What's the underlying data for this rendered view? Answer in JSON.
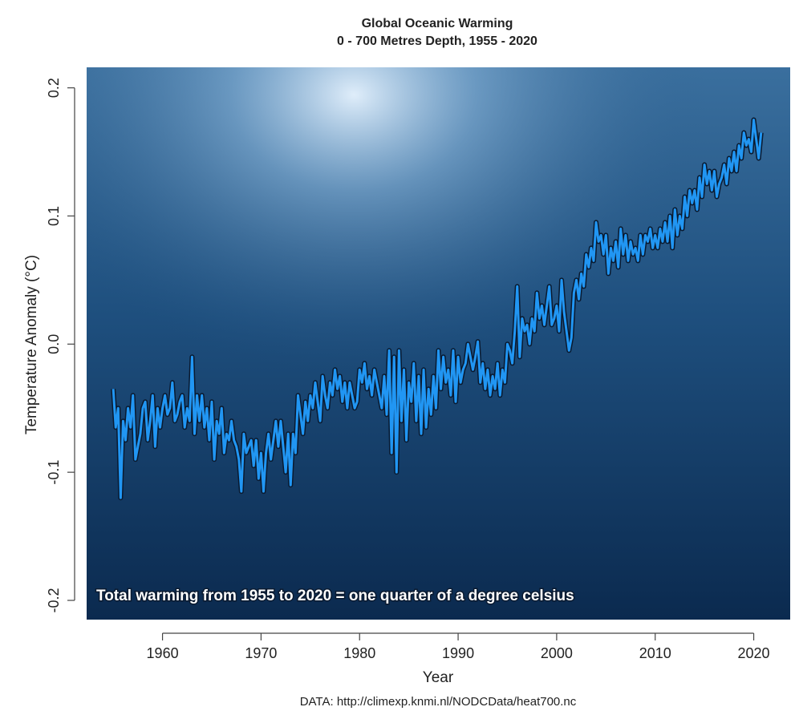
{
  "chart_data": {
    "type": "line",
    "title": "Global Oceanic Warming",
    "subtitle": "0 - 700 Metres Depth, 1955 - 2020",
    "x_label": "Year",
    "y_label": "Temperature Anomaly (°C)",
    "annotation": "Total warming from 1955 to 2020 = one quarter of a degree celsius",
    "source": "DATA: http://climexp.knmi.nl/NODCData/heat700.nc",
    "xlim": [
      1952.3,
      2023.7
    ],
    "ylim": [
      -0.215,
      0.216
    ],
    "xticks": [
      1960,
      1970,
      1980,
      1990,
      2000,
      2010,
      2020
    ],
    "yticks": [
      0.2,
      0.1,
      {
        "value": 0,
        "label": "0.0"
      },
      -0.1,
      -0.2
    ],
    "x": [
      1955,
      1955.25,
      1955.5,
      1955.75,
      1956,
      1956.25,
      1956.5,
      1956.75,
      1957,
      1957.25,
      1957.5,
      1957.75,
      1958,
      1958.25,
      1958.5,
      1958.75,
      1959,
      1959.25,
      1959.5,
      1959.75,
      1960,
      1960.25,
      1960.5,
      1960.75,
      1961,
      1961.25,
      1961.5,
      1961.75,
      1962,
      1962.25,
      1962.5,
      1962.75,
      1963,
      1963.25,
      1963.5,
      1963.75,
      1964,
      1964.25,
      1964.5,
      1964.75,
      1965,
      1965.25,
      1965.5,
      1965.75,
      1966,
      1966.25,
      1966.5,
      1966.75,
      1967,
      1967.25,
      1967.5,
      1967.75,
      1968,
      1968.25,
      1968.5,
      1968.75,
      1969,
      1969.25,
      1969.5,
      1969.75,
      1970,
      1970.25,
      1970.5,
      1970.75,
      1971,
      1971.25,
      1971.5,
      1971.75,
      1972,
      1972.25,
      1972.5,
      1972.75,
      1973,
      1973.25,
      1973.5,
      1973.75,
      1974,
      1974.25,
      1974.5,
      1974.75,
      1975,
      1975.25,
      1975.5,
      1975.75,
      1976,
      1976.25,
      1976.5,
      1976.75,
      1977,
      1977.25,
      1977.5,
      1977.75,
      1978,
      1978.25,
      1978.5,
      1978.75,
      1979,
      1979.25,
      1979.5,
      1979.75,
      1980,
      1980.25,
      1980.5,
      1980.75,
      1981,
      1981.25,
      1981.5,
      1981.75,
      1982,
      1982.25,
      1982.5,
      1982.75,
      1983,
      1983.25,
      1983.5,
      1983.75,
      1984,
      1984.25,
      1984.5,
      1984.75,
      1985,
      1985.25,
      1985.5,
      1985.75,
      1986,
      1986.25,
      1986.5,
      1986.75,
      1987,
      1987.25,
      1987.5,
      1987.75,
      1988,
      1988.25,
      1988.5,
      1988.75,
      1989,
      1989.25,
      1989.5,
      1989.75,
      1990,
      1990.25,
      1990.5,
      1990.75,
      1991,
      1991.25,
      1991.5,
      1991.75,
      1992,
      1992.25,
      1992.5,
      1992.75,
      1993,
      1993.25,
      1993.5,
      1993.75,
      1994,
      1994.25,
      1994.5,
      1994.75,
      1995,
      1995.25,
      1995.5,
      1995.75,
      1996,
      1996.25,
      1996.5,
      1996.75,
      1997,
      1997.25,
      1997.5,
      1997.75,
      1998,
      1998.25,
      1998.5,
      1998.75,
      1999,
      1999.25,
      1999.5,
      1999.75,
      2000,
      2000.25,
      2000.5,
      2000.75,
      2001,
      2001.25,
      2001.5,
      2001.75,
      2002,
      2002.25,
      2002.5,
      2002.75,
      2003,
      2003.25,
      2003.5,
      2003.75,
      2004,
      2004.25,
      2004.5,
      2004.75,
      2005,
      2005.25,
      2005.5,
      2005.75,
      2006,
      2006.25,
      2006.5,
      2006.75,
      2007,
      2007.25,
      2007.5,
      2007.75,
      2008,
      2008.25,
      2008.5,
      2008.75,
      2009,
      2009.25,
      2009.5,
      2009.75,
      2010,
      2010.25,
      2010.5,
      2010.75,
      2011,
      2011.25,
      2011.5,
      2011.75,
      2012,
      2012.25,
      2012.5,
      2012.75,
      2013,
      2013.25,
      2013.5,
      2013.75,
      2014,
      2014.25,
      2014.5,
      2014.75,
      2015,
      2015.25,
      2015.5,
      2015.75,
      2016,
      2016.25,
      2016.5,
      2016.75,
      2017,
      2017.25,
      2017.5,
      2017.75,
      2018,
      2018.25,
      2018.5,
      2018.75,
      2019,
      2019.25,
      2019.5,
      2019.75,
      2020,
      2020.25,
      2020.5,
      2020.75
    ],
    "series": [
      {
        "color": "#2196f3",
        "values": [
          -0.035,
          -0.065,
          -0.05,
          -0.12,
          -0.06,
          -0.075,
          -0.05,
          -0.065,
          -0.04,
          -0.09,
          -0.08,
          -0.07,
          -0.05,
          -0.045,
          -0.075,
          -0.06,
          -0.04,
          -0.08,
          -0.05,
          -0.065,
          -0.05,
          -0.04,
          -0.055,
          -0.05,
          -0.03,
          -0.06,
          -0.055,
          -0.045,
          -0.04,
          -0.065,
          -0.05,
          -0.06,
          -0.01,
          -0.07,
          -0.04,
          -0.06,
          -0.04,
          -0.065,
          -0.05,
          -0.075,
          -0.045,
          -0.09,
          -0.06,
          -0.07,
          -0.05,
          -0.085,
          -0.07,
          -0.075,
          -0.06,
          -0.075,
          -0.08,
          -0.09,
          -0.115,
          -0.07,
          -0.085,
          -0.08,
          -0.075,
          -0.095,
          -0.075,
          -0.105,
          -0.085,
          -0.115,
          -0.085,
          -0.07,
          -0.09,
          -0.075,
          -0.06,
          -0.08,
          -0.06,
          -0.08,
          -0.1,
          -0.07,
          -0.11,
          -0.07,
          -0.085,
          -0.04,
          -0.055,
          -0.07,
          -0.045,
          -0.06,
          -0.04,
          -0.05,
          -0.03,
          -0.045,
          -0.06,
          -0.025,
          -0.04,
          -0.05,
          -0.03,
          -0.04,
          -0.02,
          -0.035,
          -0.025,
          -0.045,
          -0.03,
          -0.05,
          -0.03,
          -0.04,
          -0.05,
          -0.045,
          -0.02,
          -0.03,
          -0.015,
          -0.035,
          -0.025,
          -0.04,
          -0.02,
          -0.03,
          -0.04,
          -0.05,
          -0.025,
          -0.055,
          -0.005,
          -0.085,
          -0.01,
          -0.1,
          -0.005,
          -0.06,
          -0.02,
          -0.075,
          -0.03,
          -0.045,
          -0.015,
          -0.06,
          -0.025,
          -0.07,
          -0.02,
          -0.065,
          -0.035,
          -0.055,
          -0.025,
          -0.05,
          -0.005,
          -0.035,
          -0.01,
          -0.03,
          -0.02,
          -0.04,
          -0.005,
          -0.045,
          -0.01,
          -0.03,
          -0.02,
          -0.015,
          0.0,
          -0.01,
          -0.02,
          -0.01,
          0.002,
          -0.03,
          -0.015,
          -0.035,
          -0.02,
          -0.04,
          -0.025,
          -0.035,
          -0.015,
          -0.04,
          -0.02,
          -0.03,
          0.0,
          -0.005,
          -0.015,
          0.01,
          0.045,
          -0.01,
          0.02,
          0.01,
          0.015,
          0.0,
          0.02,
          0.01,
          0.04,
          0.02,
          0.03,
          0.015,
          0.03,
          0.045,
          0.015,
          0.02,
          0.03,
          0.01,
          0.05,
          0.025,
          0.01,
          -0.005,
          0.005,
          0.04,
          0.05,
          0.035,
          0.055,
          0.045,
          0.07,
          0.06,
          0.075,
          0.065,
          0.095,
          0.08,
          0.085,
          0.07,
          0.085,
          0.055,
          0.075,
          0.065,
          0.08,
          0.06,
          0.09,
          0.07,
          0.085,
          0.065,
          0.08,
          0.07,
          0.075,
          0.065,
          0.085,
          0.07,
          0.085,
          0.08,
          0.09,
          0.075,
          0.085,
          0.075,
          0.09,
          0.08,
          0.095,
          0.08,
          0.1,
          0.075,
          0.105,
          0.085,
          0.1,
          0.09,
          0.115,
          0.1,
          0.12,
          0.11,
          0.12,
          0.105,
          0.13,
          0.115,
          0.14,
          0.125,
          0.135,
          0.12,
          0.135,
          0.115,
          0.125,
          0.13,
          0.14,
          0.125,
          0.145,
          0.135,
          0.15,
          0.135,
          0.155,
          0.145,
          0.165,
          0.155,
          0.16,
          0.15,
          0.175,
          0.16,
          0.145,
          0.165
        ]
      }
    ]
  }
}
